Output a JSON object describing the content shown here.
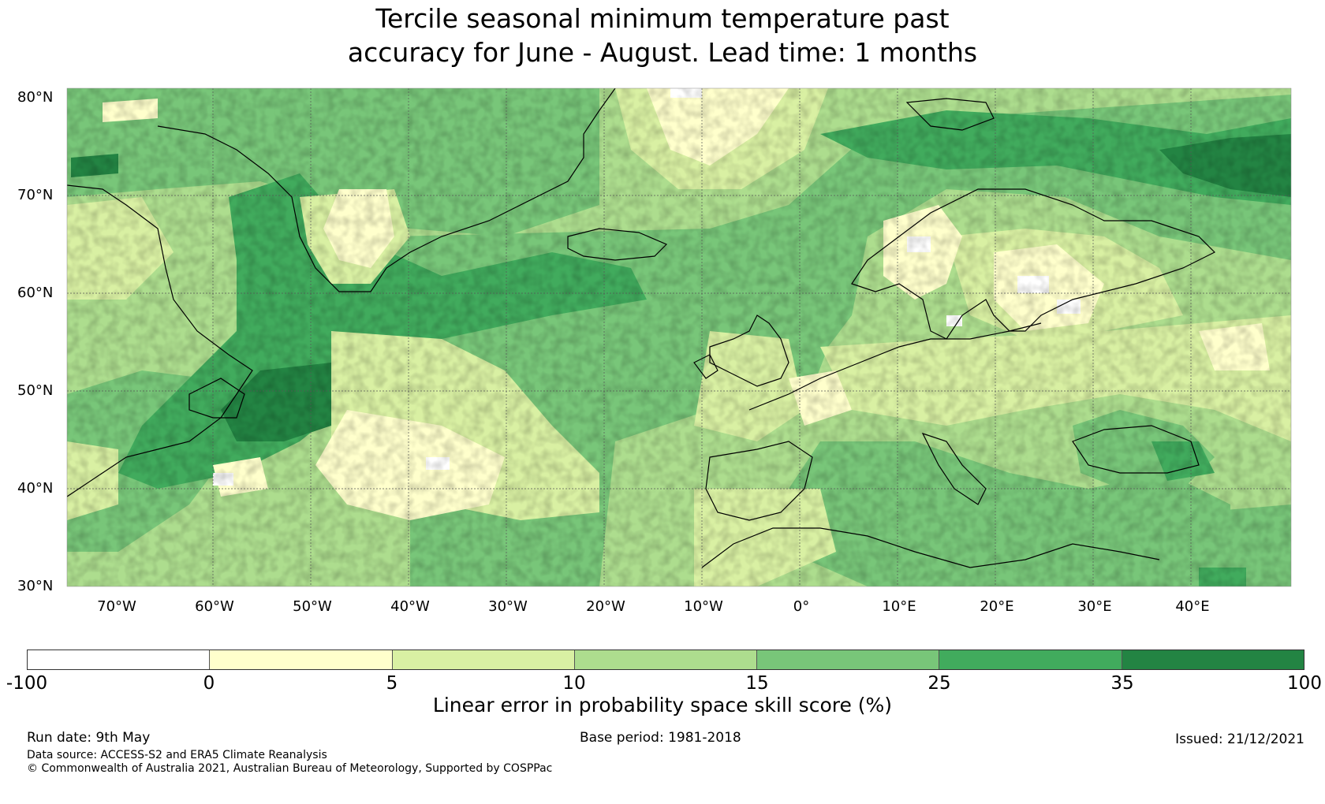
{
  "title_line1": "Tercile seasonal minimum temperature past",
  "title_line2": "accuracy for June - August. Lead time: 1 months",
  "lat_labels": [
    "80°N",
    "70°N",
    "60°N",
    "50°N",
    "40°N",
    "30°N"
  ],
  "lon_labels": [
    "70°W",
    "60°W",
    "50°W",
    "40°W",
    "30°W",
    "20°W",
    "10°W",
    "0°",
    "10°E",
    "20°E",
    "30°E",
    "40°E"
  ],
  "legend": {
    "bins": [
      {
        "from": -100,
        "to": 0,
        "color": "#ffffff"
      },
      {
        "from": 0,
        "to": 5,
        "color": "#ffffcc"
      },
      {
        "from": 5,
        "to": 10,
        "color": "#d9f0a3"
      },
      {
        "from": 10,
        "to": 15,
        "color": "#addd8e"
      },
      {
        "from": 15,
        "to": 25,
        "color": "#78c679"
      },
      {
        "from": 25,
        "to": 35,
        "color": "#41ab5d"
      },
      {
        "from": 35,
        "to": 100,
        "color": "#238443"
      }
    ],
    "ticks": [
      "-100",
      "0",
      "5",
      "10",
      "15",
      "25",
      "35",
      "100"
    ],
    "label": "Linear error in probability space skill score (%)"
  },
  "footer": {
    "run_date": "Run date: 9th May",
    "base_period": "Base period: 1981-2018",
    "issued": "Issued: 21/12/2021",
    "data_source": "Data source: ACCESS-S2 and ERA5 Climate Reanalysis",
    "copyright": "© Commonwealth of Australia 2021, Australian Bureau of Meteorology, Supported by COSPPac"
  }
}
